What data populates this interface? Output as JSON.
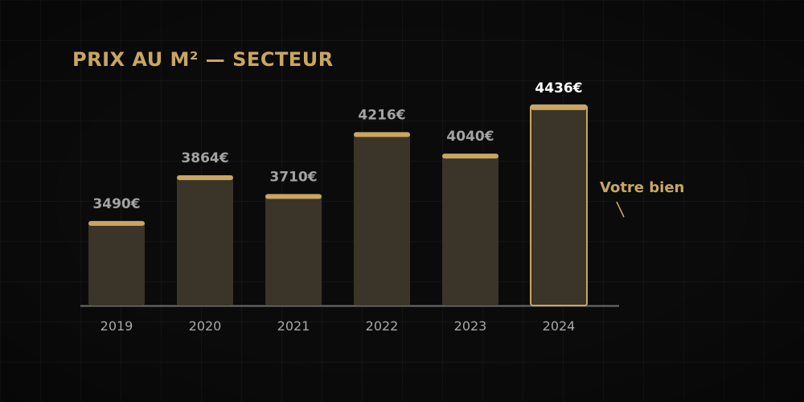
{
  "chart_data": {
    "type": "bar",
    "title": "PRIX AU M² — SECTEUR",
    "xlabel": "",
    "ylabel": "",
    "categories": [
      "2019",
      "2020",
      "2021",
      "2022",
      "2023",
      "2024"
    ],
    "values": [
      3490,
      3864,
      3710,
      4216,
      4040,
      4436
    ],
    "value_labels": [
      "3490€",
      "3864€",
      "3710€",
      "4216€",
      "4040€",
      "4436€"
    ],
    "highlight_index": 5,
    "annotation": {
      "text": "Votre bien",
      "target": "2024"
    },
    "grid": true
  },
  "colors": {
    "background": "#0b0b0c",
    "bar_fill": "#3b3428",
    "bar_cap": "#c9a661",
    "accent_gold": "#c9a661",
    "value_label": "#a3a3a3",
    "highlight_value_label": "#ffffff",
    "tick_label": "#a8a8a8",
    "axis_line": "#6e6e6e"
  }
}
